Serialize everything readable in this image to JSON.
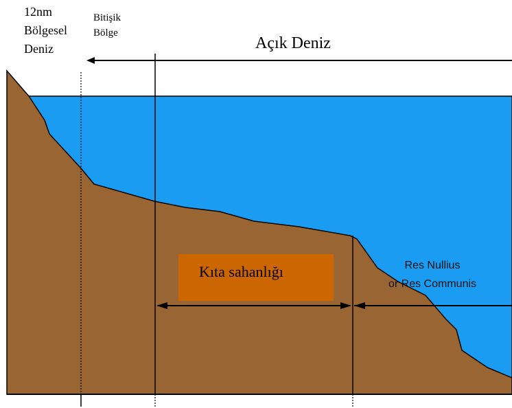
{
  "labels": {
    "territorial_sea": [
      "12nm",
      "Bölgesel",
      "Deniz"
    ],
    "contiguous_zone": [
      "Bitişik",
      "Bölge"
    ],
    "high_seas": "Açık Deniz",
    "continental_shelf": "Kıta sahanlığı",
    "res": [
      "Res Nullius",
      "or Res Communis"
    ]
  }
}
